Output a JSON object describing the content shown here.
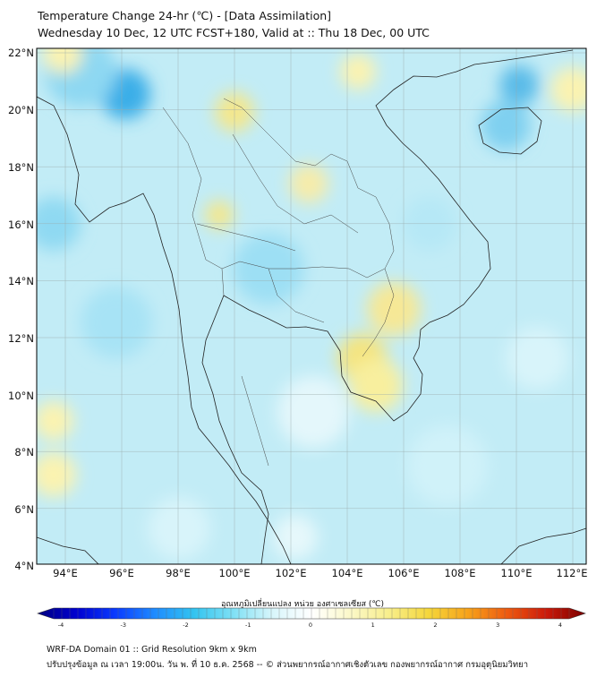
{
  "title_line1": "Temperature Change 24-hr (℃) - [Data Assimilation]",
  "title_line2": "Wednesday 10 Dec, 12 UTC FCST+180, Valid at :: Thu 18 Dec, 00 UTC",
  "lat_labels": [
    "22°N",
    "20°N",
    "18°N",
    "16°N",
    "14°N",
    "12°N",
    "10°N",
    "8°N",
    "6°N",
    "4°N"
  ],
  "lon_labels": [
    "94°E",
    "96°E",
    "98°E",
    "100°E",
    "102°E",
    "104°E",
    "106°E",
    "108°E",
    "110°E",
    "112°E"
  ],
  "colorbar": {
    "label": "อุณหภูมิเปลี่ยนแปลง หน่วย องศาเซลเซียส (℃)",
    "ticks": [
      "-4",
      "-3",
      "-2",
      "-1",
      "0",
      "1",
      "2",
      "3",
      "4"
    ],
    "min": -4,
    "max": 4,
    "colors": [
      "#00007f",
      "#0000d0",
      "#0a3cff",
      "#1f8cff",
      "#33c4f0",
      "#7fe0f5",
      "#d8f6fb",
      "#ffffff",
      "#fbf8c8",
      "#f8ee8a",
      "#f5d63a",
      "#f7a21a",
      "#ee5a10",
      "#cc1a0a",
      "#7a0000"
    ]
  },
  "footer_line1": "WRF-DA Domain 01 :: Grid Resolution 9km x 9km",
  "footer_line2": "ปรับปรุงข้อมูล ณ เวลา 19:00น. วัน พ. ที่ 10 ธ.ค. 2568 -- © ส่วนพยากรณ์อากาศเชิงตัวเลข กองพยากรณ์อากาศ กรมอุตุนิยมวิทยา"
}
